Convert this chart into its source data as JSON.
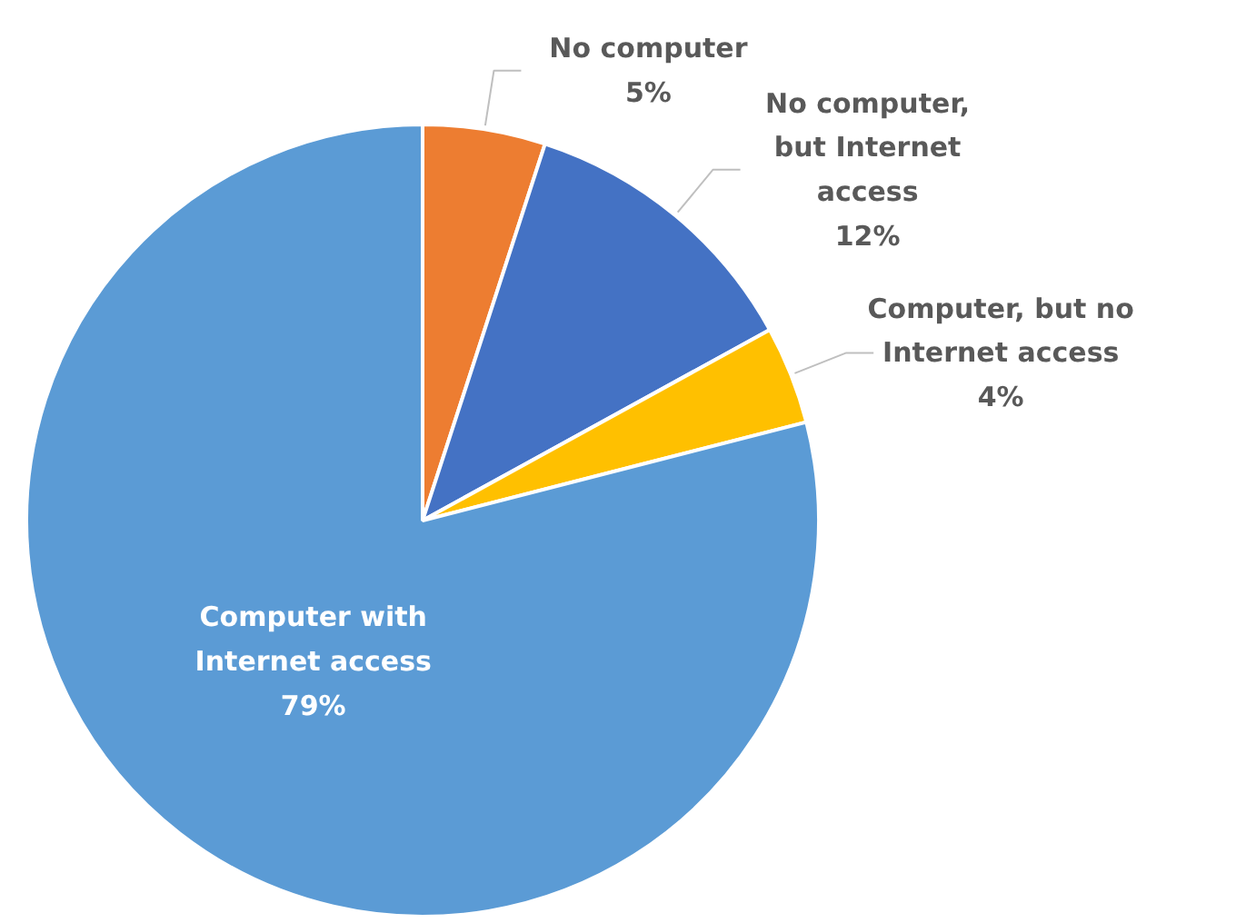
{
  "chart_data": {
    "type": "pie",
    "categories": [
      "No computer",
      "No computer,\nbut Internet\naccess",
      "Computer, but no\nInternet access",
      "Computer with\nInternet access"
    ],
    "values": [
      5,
      12,
      4,
      79
    ],
    "value_labels": [
      "5%",
      "12%",
      "4%",
      "79%"
    ],
    "colors": [
      "#ed7d31",
      "#4472c4",
      "#ffc000",
      "#5b9bd5"
    ]
  }
}
